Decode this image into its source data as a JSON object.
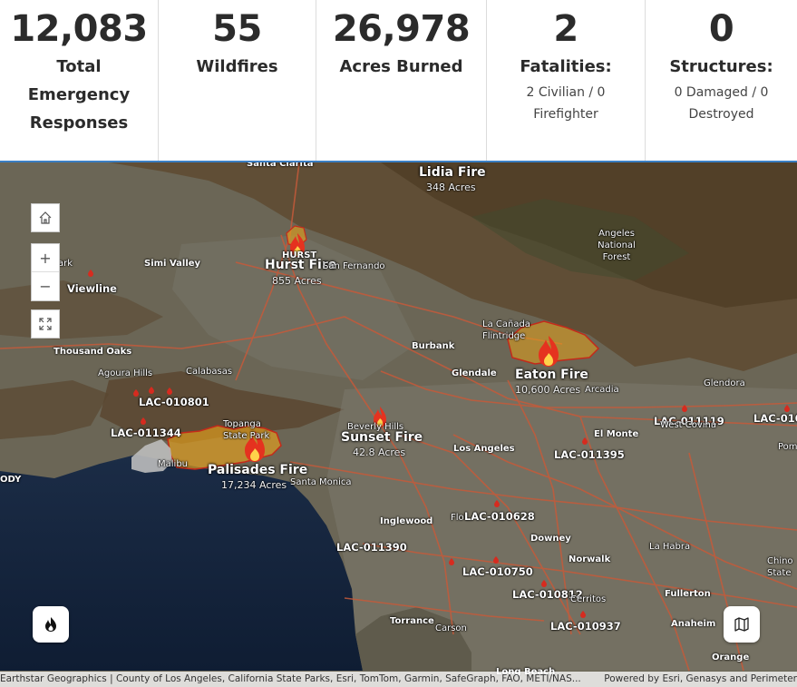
{
  "stats": [
    {
      "value": "12,083",
      "label_lines": [
        "Total",
        "Emergency",
        "Responses"
      ],
      "sub_lines": []
    },
    {
      "value": "55",
      "label_lines": [
        "Wildfires"
      ],
      "sub_lines": []
    },
    {
      "value": "26,978",
      "label_lines": [
        "Acres Burned"
      ],
      "sub_lines": []
    },
    {
      "value": "2",
      "label_lines": [
        "Fatalities:"
      ],
      "sub_lines": [
        "2 Civilian / 0",
        "Firefighter"
      ]
    },
    {
      "value": "0",
      "label_lines": [
        "Structures:"
      ],
      "sub_lines": [
        "0 Damaged / 0",
        "Destroyed"
      ]
    }
  ],
  "map": {
    "fires": [
      {
        "name": "Lidia Fire",
        "acres": "348 Acres"
      },
      {
        "name": "Hurst Fire",
        "acres": "855 Acres",
        "tag": "HURST"
      },
      {
        "name": "Eaton Fire",
        "acres": "10,600 Acres"
      },
      {
        "name": "Sunset Fire",
        "acres": "42.8 Acres"
      },
      {
        "name": "Palisades Fire",
        "acres": "17,234 Acres"
      }
    ],
    "incidents": [
      "LAC-010801",
      "LAC-011344",
      "LAC-011119",
      "LAC-010",
      "LAC-011395",
      "LAC-010628",
      "LAC-011390",
      "LAC-010750",
      "LAC-010812",
      "LAC-010937"
    ],
    "viewline": "Viewline",
    "places": [
      "Santa Clarita",
      "Angeles National Forest",
      "Simi Valley",
      "San Fernando",
      "Burbank",
      "La Cañada Flintridge",
      "Thousand Oaks",
      "Agoura Hills",
      "Calabasas",
      "Glendale",
      "Arcadia",
      "Glendora",
      "Topanga State Park",
      "Beverly Hills",
      "Los Angeles",
      "El Monte",
      "West Covina",
      "Malibu",
      "Santa Monica",
      "Inglewood",
      "Downey",
      "Norwalk",
      "La Habra",
      "Cerritos",
      "Fullerton",
      "Torrance",
      "Carson",
      "Anaheim",
      "Long Beach",
      "Orange",
      "Chino",
      "State",
      "Pomona",
      "ark",
      "ODY",
      "Flo"
    ],
    "controls": {
      "zoom_in": "+",
      "zoom_out": "−"
    },
    "attribution_left": "Earthstar Geographics | County of Los Angeles, California State Parks, Esri, TomTom, Garmin, SafeGraph, FAO, METI/NAS...",
    "attribution_right": "Powered by Esri, Genasys and Perimeter"
  },
  "colors": {
    "accent": "#3b7fc4",
    "fire": "#d62b1f",
    "perimeter": "#e8a21b"
  }
}
